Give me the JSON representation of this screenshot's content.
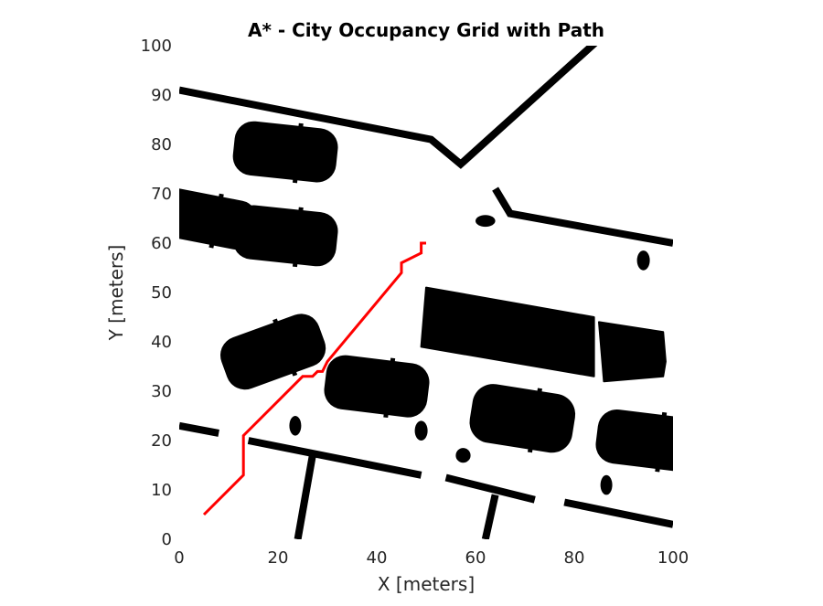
{
  "chart_data": {
    "type": "occupancy-map",
    "title": "A* - City Occupancy Grid with Path",
    "xlabel": "X [meters]",
    "ylabel": "Y [meters]",
    "xlim": [
      0,
      100
    ],
    "ylim": [
      0,
      100
    ],
    "xticks": [
      "0",
      "20",
      "40",
      "60",
      "80",
      "100"
    ],
    "yticks": [
      "0",
      "10",
      "20",
      "30",
      "40",
      "50",
      "60",
      "70",
      "80",
      "90",
      "100"
    ],
    "grid": false,
    "colors": {
      "obstacle": "#000000",
      "free": "#ffffff",
      "path": "#ff0000",
      "text": "#262626"
    },
    "path": {
      "color": "#ff0000",
      "points": [
        [
          5,
          5
        ],
        [
          13,
          13
        ],
        [
          13,
          21
        ],
        [
          20,
          28
        ],
        [
          25,
          33
        ],
        [
          27,
          33
        ],
        [
          28,
          34
        ],
        [
          29,
          34
        ],
        [
          30,
          36
        ],
        [
          45,
          54
        ],
        [
          45,
          56
        ],
        [
          49,
          58
        ],
        [
          49,
          60
        ],
        [
          50,
          60
        ]
      ]
    },
    "walls": [
      [
        [
          0,
          91
        ],
        [
          51,
          81
        ],
        [
          57,
          76
        ],
        [
          98,
          113
        ]
      ],
      [
        [
          64,
          71
        ],
        [
          67,
          66
        ],
        [
          100,
          60
        ]
      ],
      [
        [
          0,
          23
        ],
        [
          8,
          21.5
        ]
      ],
      [
        [
          14,
          20
        ],
        [
          49,
          13
        ]
      ],
      [
        [
          54,
          12.5
        ],
        [
          72,
          8
        ]
      ],
      [
        [
          78,
          7.5
        ],
        [
          100,
          3
        ]
      ],
      [
        [
          27,
          17
        ],
        [
          24,
          0
        ]
      ],
      [
        [
          64,
          9
        ],
        [
          62,
          0
        ]
      ]
    ],
    "cars": [
      {
        "cx": 21.5,
        "cy": 78.5,
        "w": 21,
        "h": 11,
        "angle": -6
      },
      {
        "cx": 5,
        "cy": 65,
        "w": 21,
        "h": 10,
        "angle": -11
      },
      {
        "cx": 21.5,
        "cy": 61.5,
        "w": 21,
        "h": 11,
        "angle": -6
      },
      {
        "cx": 19,
        "cy": 38,
        "w": 21,
        "h": 11,
        "angle": 20
      },
      {
        "cx": 40,
        "cy": 31,
        "w": 21,
        "h": 11,
        "angle": -7
      },
      {
        "cx": 69.5,
        "cy": 24.5,
        "w": 21,
        "h": 12,
        "angle": -9
      },
      {
        "cx": 95,
        "cy": 20,
        "w": 21,
        "h": 11,
        "angle": -7
      }
    ],
    "buildings": [
      [
        [
          50,
          51
        ],
        [
          84,
          45
        ],
        [
          84,
          33
        ],
        [
          49,
          39
        ]
      ],
      [
        [
          85,
          44
        ],
        [
          98,
          42
        ],
        [
          98.5,
          36
        ],
        [
          98,
          33
        ],
        [
          86,
          32
        ]
      ]
    ],
    "blobs": [
      {
        "cx": 62,
        "cy": 64.5,
        "rx": 2.0,
        "ry": 1.2
      },
      {
        "cx": 94,
        "cy": 56.5,
        "rx": 1.3,
        "ry": 2.0
      },
      {
        "cx": 23.5,
        "cy": 23,
        "rx": 1.2,
        "ry": 2.0
      },
      {
        "cx": 49,
        "cy": 22,
        "rx": 1.3,
        "ry": 2.0
      },
      {
        "cx": 57.5,
        "cy": 17,
        "rx": 1.5,
        "ry": 1.5
      },
      {
        "cx": 86.5,
        "cy": 11,
        "rx": 1.2,
        "ry": 2.0
      }
    ]
  }
}
